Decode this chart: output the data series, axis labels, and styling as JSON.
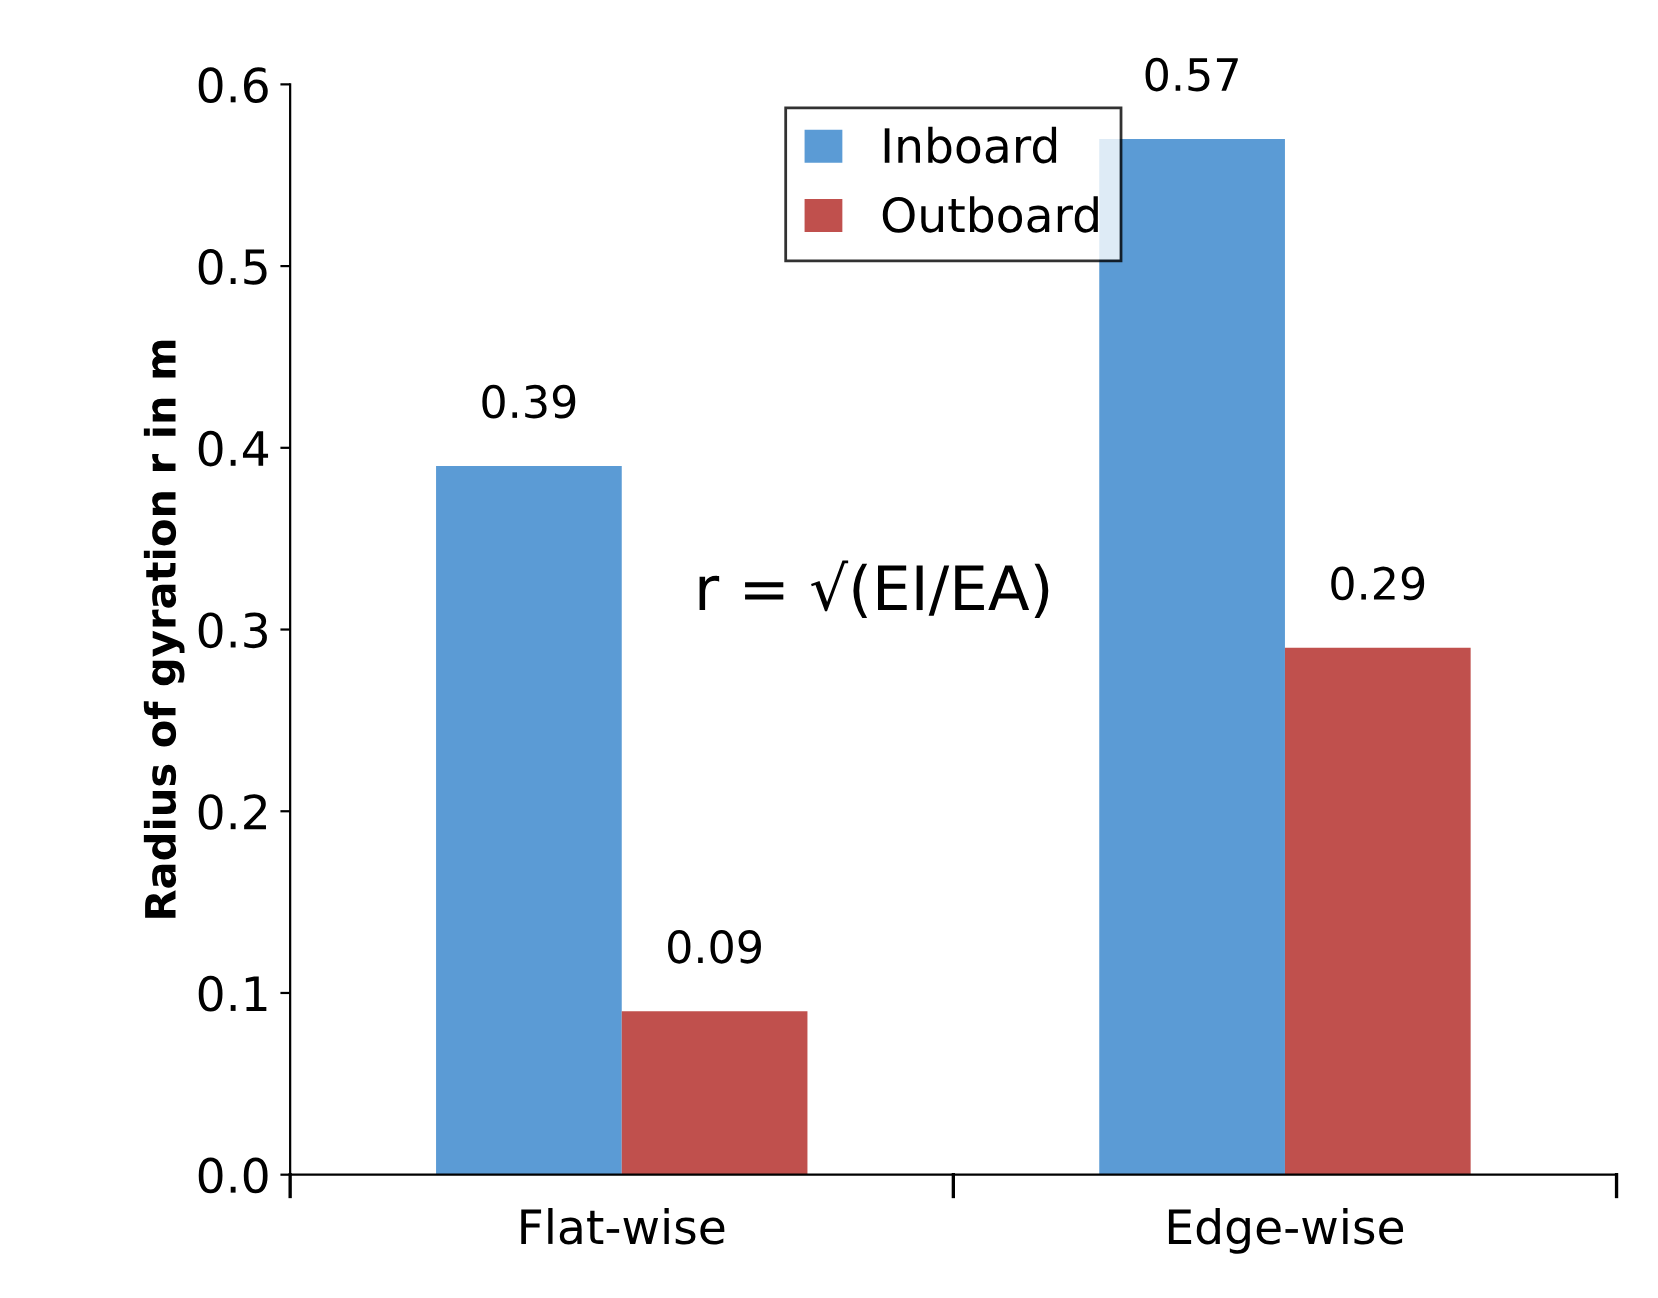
{
  "chart_data": {
    "type": "bar",
    "ylabel": "Radius of gyration r in m",
    "categories": [
      "Flat-wise",
      "Edge-wise"
    ],
    "series": [
      {
        "name": "Inboard",
        "color": "#5b9bd5",
        "values": [
          0.39,
          0.57
        ]
      },
      {
        "name": "Outboard",
        "color": "#c0504d",
        "values": [
          0.09,
          0.29
        ]
      }
    ],
    "ylim": [
      0,
      0.6
    ],
    "yticks": [
      {
        "value": 0,
        "label": "0.0"
      },
      0.1,
      0.2,
      0.3,
      0.4,
      0.5,
      0.6
    ],
    "data_labels": true,
    "grid": false,
    "legend": "top",
    "annotations": [
      "r = √(EI/EA)"
    ]
  }
}
